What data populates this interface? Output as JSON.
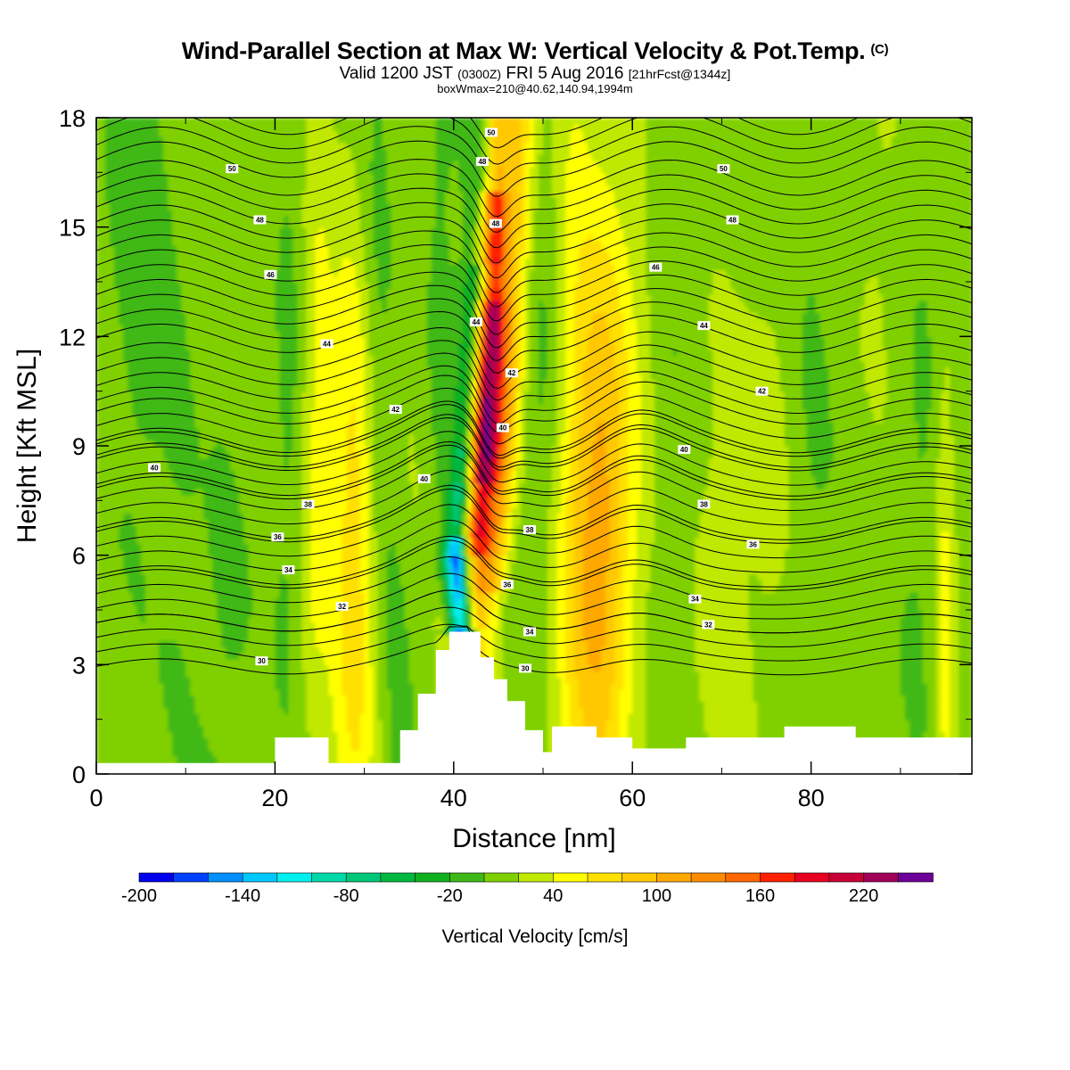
{
  "header": {
    "title": "Wind-Parallel Section at Max W: Vertical Velocity & Pot.Temp.",
    "title_tag": "(C)",
    "subtitle_main": "Valid 1200 JST",
    "subtitle_utc": "(0300Z)",
    "subtitle_date": "FRI 5 Aug 2016",
    "subtitle_fcst": "[21hrFcst@1344z]",
    "boxinfo": "boxWmax=210@40.62,140.94,1994m"
  },
  "chart_data": {
    "type": "heatmap",
    "title": "Wind-Parallel Section at Max W: Vertical Velocity & Pot.Temp.",
    "xlabel": "Distance [nm]",
    "ylabel": "Height [Kft MSL]",
    "xlim": [
      0,
      98
    ],
    "ylim": [
      0,
      18
    ],
    "x_ticks": [
      0,
      20,
      40,
      60,
      80
    ],
    "y_ticks": [
      0,
      3,
      6,
      9,
      12,
      15,
      18
    ],
    "x_tick_labels": [
      "0",
      "20",
      "40",
      "60",
      "80"
    ],
    "y_tick_labels": [
      "0",
      "3",
      "6",
      "9",
      "12",
      "15",
      "18"
    ],
    "colorbar": {
      "label": "Vertical Velocity [cm/s]",
      "min": -200,
      "max": 260,
      "step": 20,
      "tick_values": [
        -200,
        -140,
        -80,
        -20,
        40,
        100,
        160,
        220
      ],
      "tick_labels": [
        "-200",
        "-140",
        "-80",
        "-20",
        "40",
        "100",
        "160",
        "220"
      ],
      "colors": [
        "#0000ee",
        "#0040ff",
        "#0090ff",
        "#00c8ff",
        "#00f0f0",
        "#00d8a8",
        "#00c878",
        "#00b840",
        "#10b020",
        "#40b818",
        "#80d000",
        "#c0e800",
        "#ffff00",
        "#ffe000",
        "#ffc800",
        "#ffa800",
        "#ff8c00",
        "#ff6800",
        "#ff2000",
        "#e80020",
        "#c80038",
        "#a00058",
        "#6c0098"
      ]
    },
    "updraft_axis": [
      [
        41.0,
        3.8
      ],
      [
        42.0,
        6.0
      ],
      [
        43.2,
        9.0
      ],
      [
        43.9,
        12.0
      ],
      [
        44.4,
        15.0
      ],
      [
        44.6,
        18.0
      ]
    ],
    "downdraft_axis": [
      [
        40.8,
        4.0
      ],
      [
        40.4,
        6.0
      ],
      [
        41.5,
        9.0
      ],
      [
        42.5,
        12.0
      ],
      [
        43.4,
        15.0
      ],
      [
        44.0,
        18.0
      ]
    ],
    "velocity_features": [
      {
        "kind": "updraft",
        "x": 43.6,
        "y": 10.5,
        "peak": 210
      },
      {
        "kind": "downdraft",
        "x": 40.8,
        "y": 5.3,
        "peak": -200
      }
    ],
    "terrain": [
      [
        0,
        0.3
      ],
      [
        18,
        0.3
      ],
      [
        20,
        1.0
      ],
      [
        24,
        1.0
      ],
      [
        26,
        0.3
      ],
      [
        31,
        0.3
      ],
      [
        34,
        1.2
      ],
      [
        36,
        2.2
      ],
      [
        38,
        3.4
      ],
      [
        39.5,
        3.9
      ],
      [
        41.5,
        3.9
      ],
      [
        43,
        3.2
      ],
      [
        44.5,
        2.6
      ],
      [
        46,
        2.0
      ],
      [
        48,
        1.2
      ],
      [
        50,
        0.6
      ],
      [
        51,
        1.3
      ],
      [
        54,
        1.3
      ],
      [
        56,
        1.0
      ],
      [
        60,
        0.7
      ],
      [
        65,
        0.7
      ],
      [
        66,
        1.0
      ],
      [
        76,
        1.0
      ],
      [
        77,
        1.3
      ],
      [
        84,
        1.3
      ],
      [
        85,
        1.0
      ],
      [
        98,
        1.0
      ]
    ],
    "theta_contours": [
      {
        "value": 30,
        "base_height": 2.95
      },
      {
        "value": 32,
        "base_height": 4.15
      },
      {
        "value": 34,
        "base_height": 5.45
      },
      {
        "value": 36,
        "base_height": 6.75
      },
      {
        "value": 38,
        "base_height": 7.85
      },
      {
        "value": 40,
        "base_height": 8.75
      },
      {
        "value": 42,
        "base_height": 10.25
      },
      {
        "value": 44,
        "base_height": 11.95
      },
      {
        "value": 46,
        "base_height": 13.55
      },
      {
        "value": 48,
        "base_height": 15.15
      },
      {
        "value": 50,
        "base_height": 16.85
      }
    ],
    "contour_labels": [
      {
        "text": "30",
        "x": 18.5,
        "y": 3.1
      },
      {
        "text": "30",
        "x": 48,
        "y": 2.9
      },
      {
        "text": "32",
        "x": 27.5,
        "y": 4.6
      },
      {
        "text": "32",
        "x": 68.5,
        "y": 4.1
      },
      {
        "text": "34",
        "x": 21.5,
        "y": 5.6
      },
      {
        "text": "34",
        "x": 48.5,
        "y": 3.9
      },
      {
        "text": "34",
        "x": 67,
        "y": 4.8
      },
      {
        "text": "36",
        "x": 20.3,
        "y": 6.5
      },
      {
        "text": "36",
        "x": 46,
        "y": 5.2
      },
      {
        "text": "36",
        "x": 73.5,
        "y": 6.3
      },
      {
        "text": "38",
        "x": 23.7,
        "y": 7.4
      },
      {
        "text": "38",
        "x": 48.5,
        "y": 6.7
      },
      {
        "text": "38",
        "x": 68,
        "y": 7.4
      },
      {
        "text": "40",
        "x": 6.5,
        "y": 8.4
      },
      {
        "text": "40",
        "x": 36.7,
        "y": 8.1
      },
      {
        "text": "40",
        "x": 45.5,
        "y": 9.5
      },
      {
        "text": "40",
        "x": 65.8,
        "y": 8.9
      },
      {
        "text": "42",
        "x": 33.5,
        "y": 10.0
      },
      {
        "text": "42",
        "x": 46.5,
        "y": 11.0
      },
      {
        "text": "42",
        "x": 74.5,
        "y": 10.5
      },
      {
        "text": "44",
        "x": 25.8,
        "y": 11.8
      },
      {
        "text": "44",
        "x": 42.5,
        "y": 12.4
      },
      {
        "text": "44",
        "x": 68,
        "y": 12.3
      },
      {
        "text": "46",
        "x": 19.5,
        "y": 13.7
      },
      {
        "text": "46",
        "x": 62.6,
        "y": 13.9
      },
      {
        "text": "48",
        "x": 18.3,
        "y": 15.2
      },
      {
        "text": "48",
        "x": 44.7,
        "y": 15.1
      },
      {
        "text": "48",
        "x": 71.2,
        "y": 15.2
      },
      {
        "text": "48",
        "x": 43.2,
        "y": 16.8
      },
      {
        "text": "50",
        "x": 15.2,
        "y": 16.6
      },
      {
        "text": "50",
        "x": 70.2,
        "y": 16.6
      },
      {
        "text": "50",
        "x": 44.2,
        "y": 17.6
      }
    ]
  }
}
